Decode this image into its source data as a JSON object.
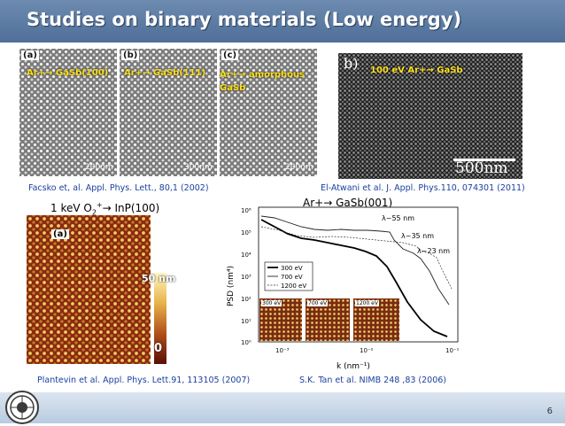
{
  "slide": {
    "title": "Studies on binary materials (Low energy)",
    "page_number": "6"
  },
  "top_left_panels": [
    {
      "letter": "(a)",
      "label": "Ar+→ GaSb(100)",
      "scale": "200nm"
    },
    {
      "letter": "(b)",
      "label": "Ar+→ GaSb(111)",
      "scale": "300nm"
    },
    {
      "letter": "(c)",
      "label": "Ar+→ amorphous GaSb",
      "scale": "200nm"
    }
  ],
  "top_right_panel": {
    "letter": "b)",
    "label": "100 eV Ar+→ GaSb",
    "scale": "500nm"
  },
  "citations": {
    "facsko": "Facsko et, al. Appl. Phys. Lett., 80,1 (2002)",
    "atwani": "El-Atwani et al. J. Appl. Phys.110, 074301 (2011)",
    "plantevin": "Plantevin et al. Appl. Phys. Lett.91, 113105 (2007)",
    "tan": "S.K. Tan et al.  NIMB 248 ,83 (2006)"
  },
  "afm_panel": {
    "heading_main": "1 keV O",
    "heading_sub": "2",
    "heading_sup": "+",
    "heading_rest": "→ InP(100)",
    "letter": "(a)",
    "colorbar_top": "50 nm",
    "colorbar_bottom": "0"
  },
  "psd_plot": {
    "heading": "Ar+→ GaSb(001)",
    "ylabel": "PSD (nm⁴)",
    "xlabel": "k (nm⁻¹)",
    "y_ticks": [
      "10⁶",
      "10⁵",
      "10⁴",
      "10³",
      "10²",
      "10¹",
      "10⁰"
    ],
    "x_ticks": [
      "10⁻³",
      "10⁻²",
      "10⁻¹"
    ],
    "annotations": [
      "λ~55 nm",
      "λ~35 nm",
      "λ~23 nm"
    ],
    "legend": [
      "300 eV",
      "700 eV",
      "1200 eV"
    ],
    "insets": [
      "300 eV",
      "700 eV",
      "1200 eV"
    ]
  }
}
